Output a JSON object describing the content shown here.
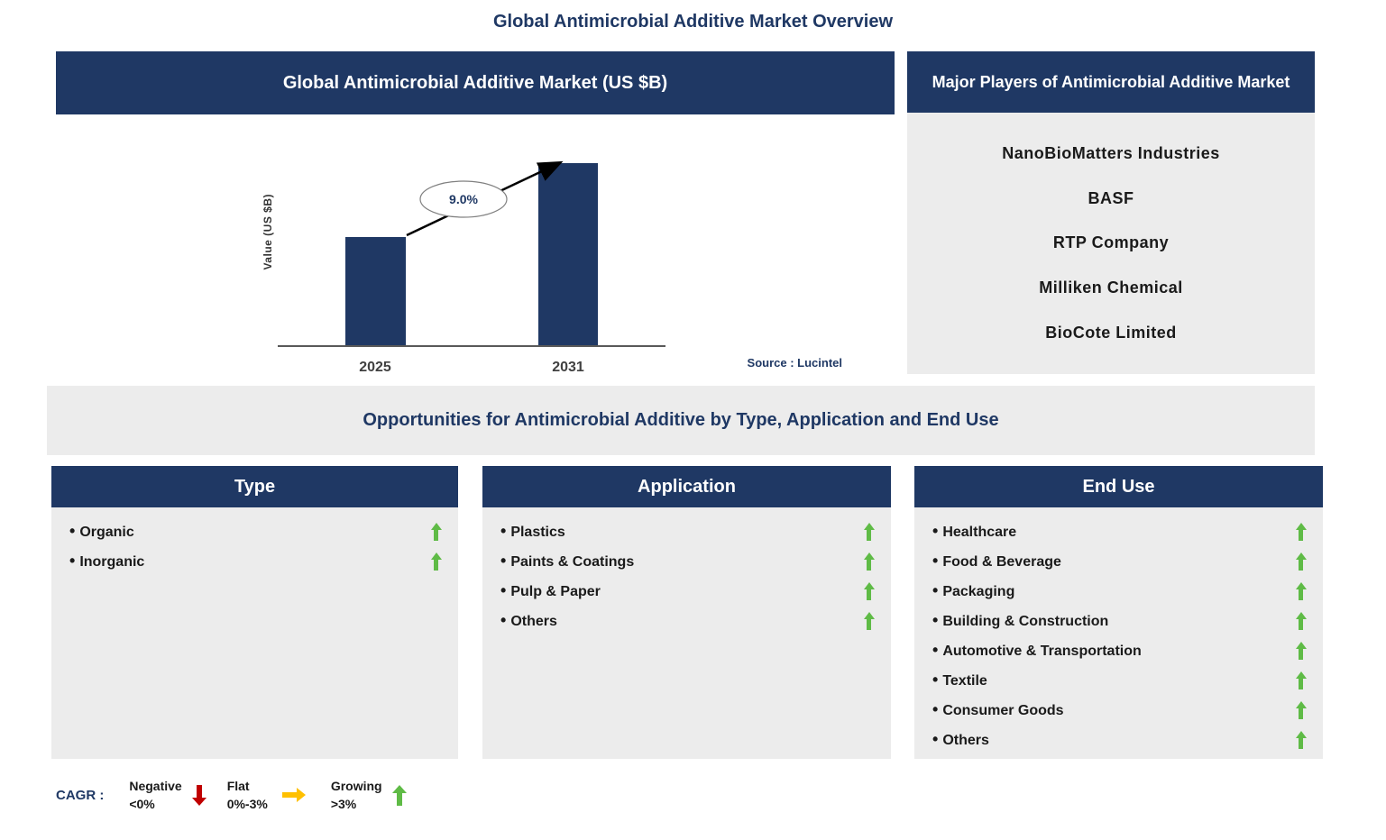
{
  "page_title": "Global Antimicrobial Additive Market Overview",
  "theme": {
    "navy": "#1F3864",
    "panel_gray": "#ECECEC",
    "green": "#5FBB46",
    "red": "#C00000",
    "yellow": "#FFC000"
  },
  "chart_panel": {
    "source": "Source : Lucintel"
  },
  "chart_data": {
    "type": "bar",
    "title": "Global Antimicrobial Additive Market (US $B)",
    "categories": [
      "2025",
      "2031"
    ],
    "values": [
      3.4,
      5.7
    ],
    "ylabel": "Value (US $B)",
    "xlabel": "",
    "ylim": [
      0,
      7
    ],
    "grid": false,
    "bar_color": "#1F3864",
    "growth_annotation": "9.0%"
  },
  "players_panel": {
    "header": "Major Players of Antimicrobial Additive Market",
    "players": [
      "NanoBioMatters Industries",
      "BASF",
      "RTP Company",
      "Milliken Chemical",
      "BioCote Limited"
    ]
  },
  "opportunities": {
    "band_title": "Opportunities for Antimicrobial Additive by Type, Application and End Use",
    "columns": [
      {
        "header": "Type",
        "items": [
          "Organic",
          "Inorganic"
        ],
        "trends": [
          "up",
          "up"
        ]
      },
      {
        "header": "Application",
        "items": [
          "Plastics",
          "Paints & Coatings",
          "Pulp & Paper",
          "Others"
        ],
        "trends": [
          "up",
          "up",
          "up",
          "up"
        ]
      },
      {
        "header": "End Use",
        "items": [
          "Healthcare",
          "Food & Beverage",
          "Packaging",
          "Building & Construction",
          "Automotive & Transportation",
          "Textile",
          "Consumer Goods",
          "Others"
        ],
        "trends": [
          "up",
          "up",
          "up",
          "up",
          "up",
          "up",
          "up",
          "up"
        ]
      }
    ]
  },
  "legend": {
    "label": "CAGR :",
    "entries": [
      {
        "name": "Negative",
        "range": "<0%",
        "direction": "down",
        "color": "#C00000"
      },
      {
        "name": "Flat",
        "range": "0%-3%",
        "direction": "right",
        "color": "#FFC000"
      },
      {
        "name": "Growing",
        "range": ">3%",
        "direction": "up",
        "color": "#5FBB46"
      }
    ]
  }
}
